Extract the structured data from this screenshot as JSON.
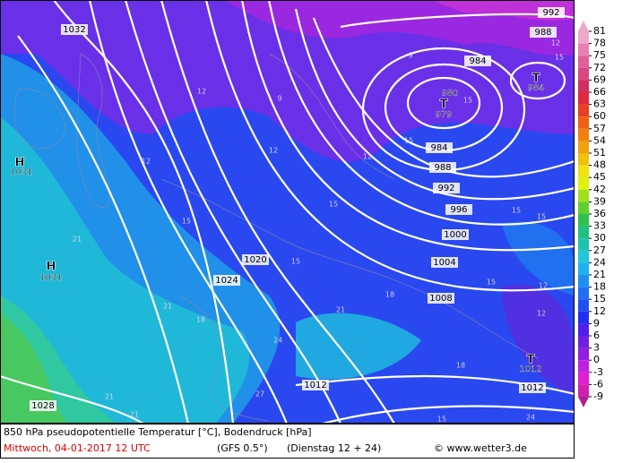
{
  "map": {
    "isobar_labels": [
      "1032",
      "1020",
      "1024",
      "1028",
      "1012",
      "1008",
      "1004",
      "1000",
      "996",
      "992",
      "988",
      "984",
      "984",
      "988",
      "992",
      "1012"
    ],
    "pressure_centers": [
      {
        "symbol": "H",
        "value": "1031"
      },
      {
        "symbol": "H",
        "value": "1031"
      },
      {
        "symbol": "T",
        "value": "979"
      },
      {
        "symbol": "T",
        "value": "984"
      },
      {
        "symbol": "T",
        "value": "1012"
      }
    ],
    "center_extra_label": "980",
    "temperature_labels": [
      "12",
      "12",
      "12",
      "12",
      "15",
      "15",
      "15",
      "18",
      "21",
      "21",
      "21",
      "21",
      "21",
      "15",
      "15",
      "15",
      "15",
      "15",
      "12",
      "12",
      "9",
      "9",
      "12",
      "15",
      "18",
      "24",
      "18",
      "15",
      "27",
      "24"
    ],
    "legend": {
      "ticks": [
        81,
        78,
        75,
        72,
        69,
        66,
        63,
        60,
        57,
        54,
        51,
        48,
        45,
        42,
        39,
        36,
        33,
        30,
        27,
        24,
        21,
        18,
        15,
        12,
        9,
        6,
        3,
        0,
        -3,
        -6,
        -9
      ],
      "colors": [
        "#f0a8c8",
        "#e880b0",
        "#e06098",
        "#d84880",
        "#d03060",
        "#e02840",
        "#e84020",
        "#f06010",
        "#f08010",
        "#f0a010",
        "#f0c010",
        "#f0e010",
        "#e0f010",
        "#a0e020",
        "#60d030",
        "#30c050",
        "#20c080",
        "#20c0b0",
        "#20c8d8",
        "#20b0f0",
        "#2090f0",
        "#2070f0",
        "#2050f0",
        "#2030f0",
        "#5020e8",
        "#7020e0",
        "#9020e0",
        "#c020e0",
        "#e020d0",
        "#d020b0",
        "#b02090"
      ]
    },
    "footer": {
      "line1": "850 hPa pseudopotentielle Temperatur [°C], Bodendruck [hPa]",
      "date": "Mittwoch, 04-01-2017  12 UTC",
      "model": "(GFS 0.5°)",
      "run": "(Dienstag 12 + 24)",
      "copyright": "© www.wetter3.de"
    }
  }
}
